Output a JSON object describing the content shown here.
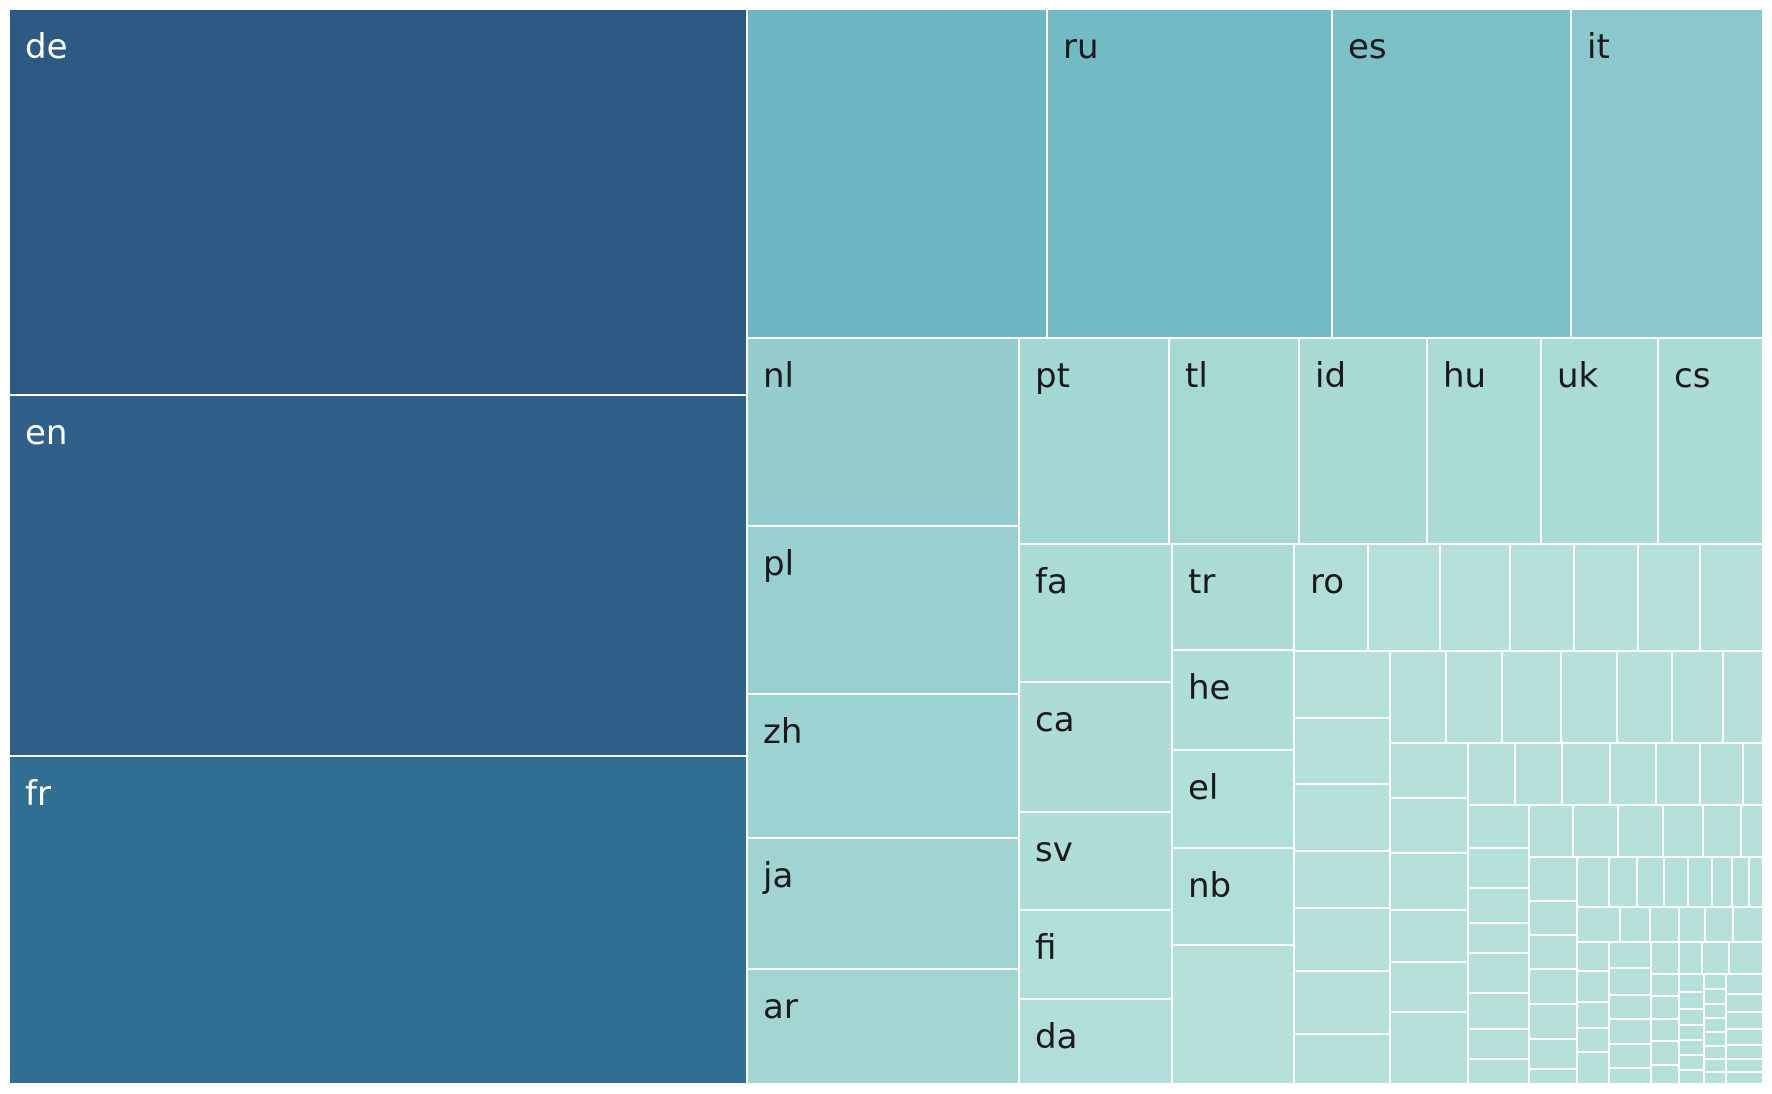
{
  "chart_data": {
    "type": "treemap",
    "title": "",
    "labeled_cells": [
      {
        "label": "de",
        "color": "#2d5985"
      },
      {
        "label": "en",
        "color": "#2f608a"
      },
      {
        "label": "fr",
        "color": "#316e94"
      },
      {
        "label": "",
        "color": "#6cb7c3"
      },
      {
        "label": "ru",
        "color": "#72bac5"
      },
      {
        "label": "es",
        "color": "#7dc1c8"
      },
      {
        "label": "it",
        "color": "#8cc7cd"
      },
      {
        "label": "nl",
        "color": "#95cdcf"
      },
      {
        "label": "pl",
        "color": "#99cfd0"
      },
      {
        "label": "zh",
        "color": "#9cd2d1"
      },
      {
        "label": "ja",
        "color": "#a0d4d2"
      },
      {
        "label": "ar",
        "color": "#a3d6d3"
      },
      {
        "label": "pt",
        "color": "#a3d7d3"
      },
      {
        "label": "tl",
        "color": "#a6d9d4"
      },
      {
        "label": "id",
        "color": "#a8d9d5"
      },
      {
        "label": "hu",
        "color": "#aadbd6"
      },
      {
        "label": "uk",
        "color": "#abdbd6"
      },
      {
        "label": "cs",
        "color": "#acdcd6"
      },
      {
        "label": "fa",
        "color": "#abdbd6"
      },
      {
        "label": "ca",
        "color": "#addcd7"
      },
      {
        "label": "sv",
        "color": "#afddd8"
      },
      {
        "label": "fi",
        "color": "#b0ded8"
      },
      {
        "label": "da",
        "color": "#b1ded9"
      },
      {
        "label": "tr",
        "color": "#addcd7"
      },
      {
        "label": "he",
        "color": "#afddd8"
      },
      {
        "label": "el",
        "color": "#b0ded8"
      },
      {
        "label": "nb",
        "color": "#b1ded9"
      },
      {
        "label": "ro",
        "color": "#b1ded9"
      }
    ],
    "small_cell_color": "#b6e1da",
    "label_color_dark_cells": "#ffffff",
    "label_color_light_cells": "#1a1a1a"
  }
}
